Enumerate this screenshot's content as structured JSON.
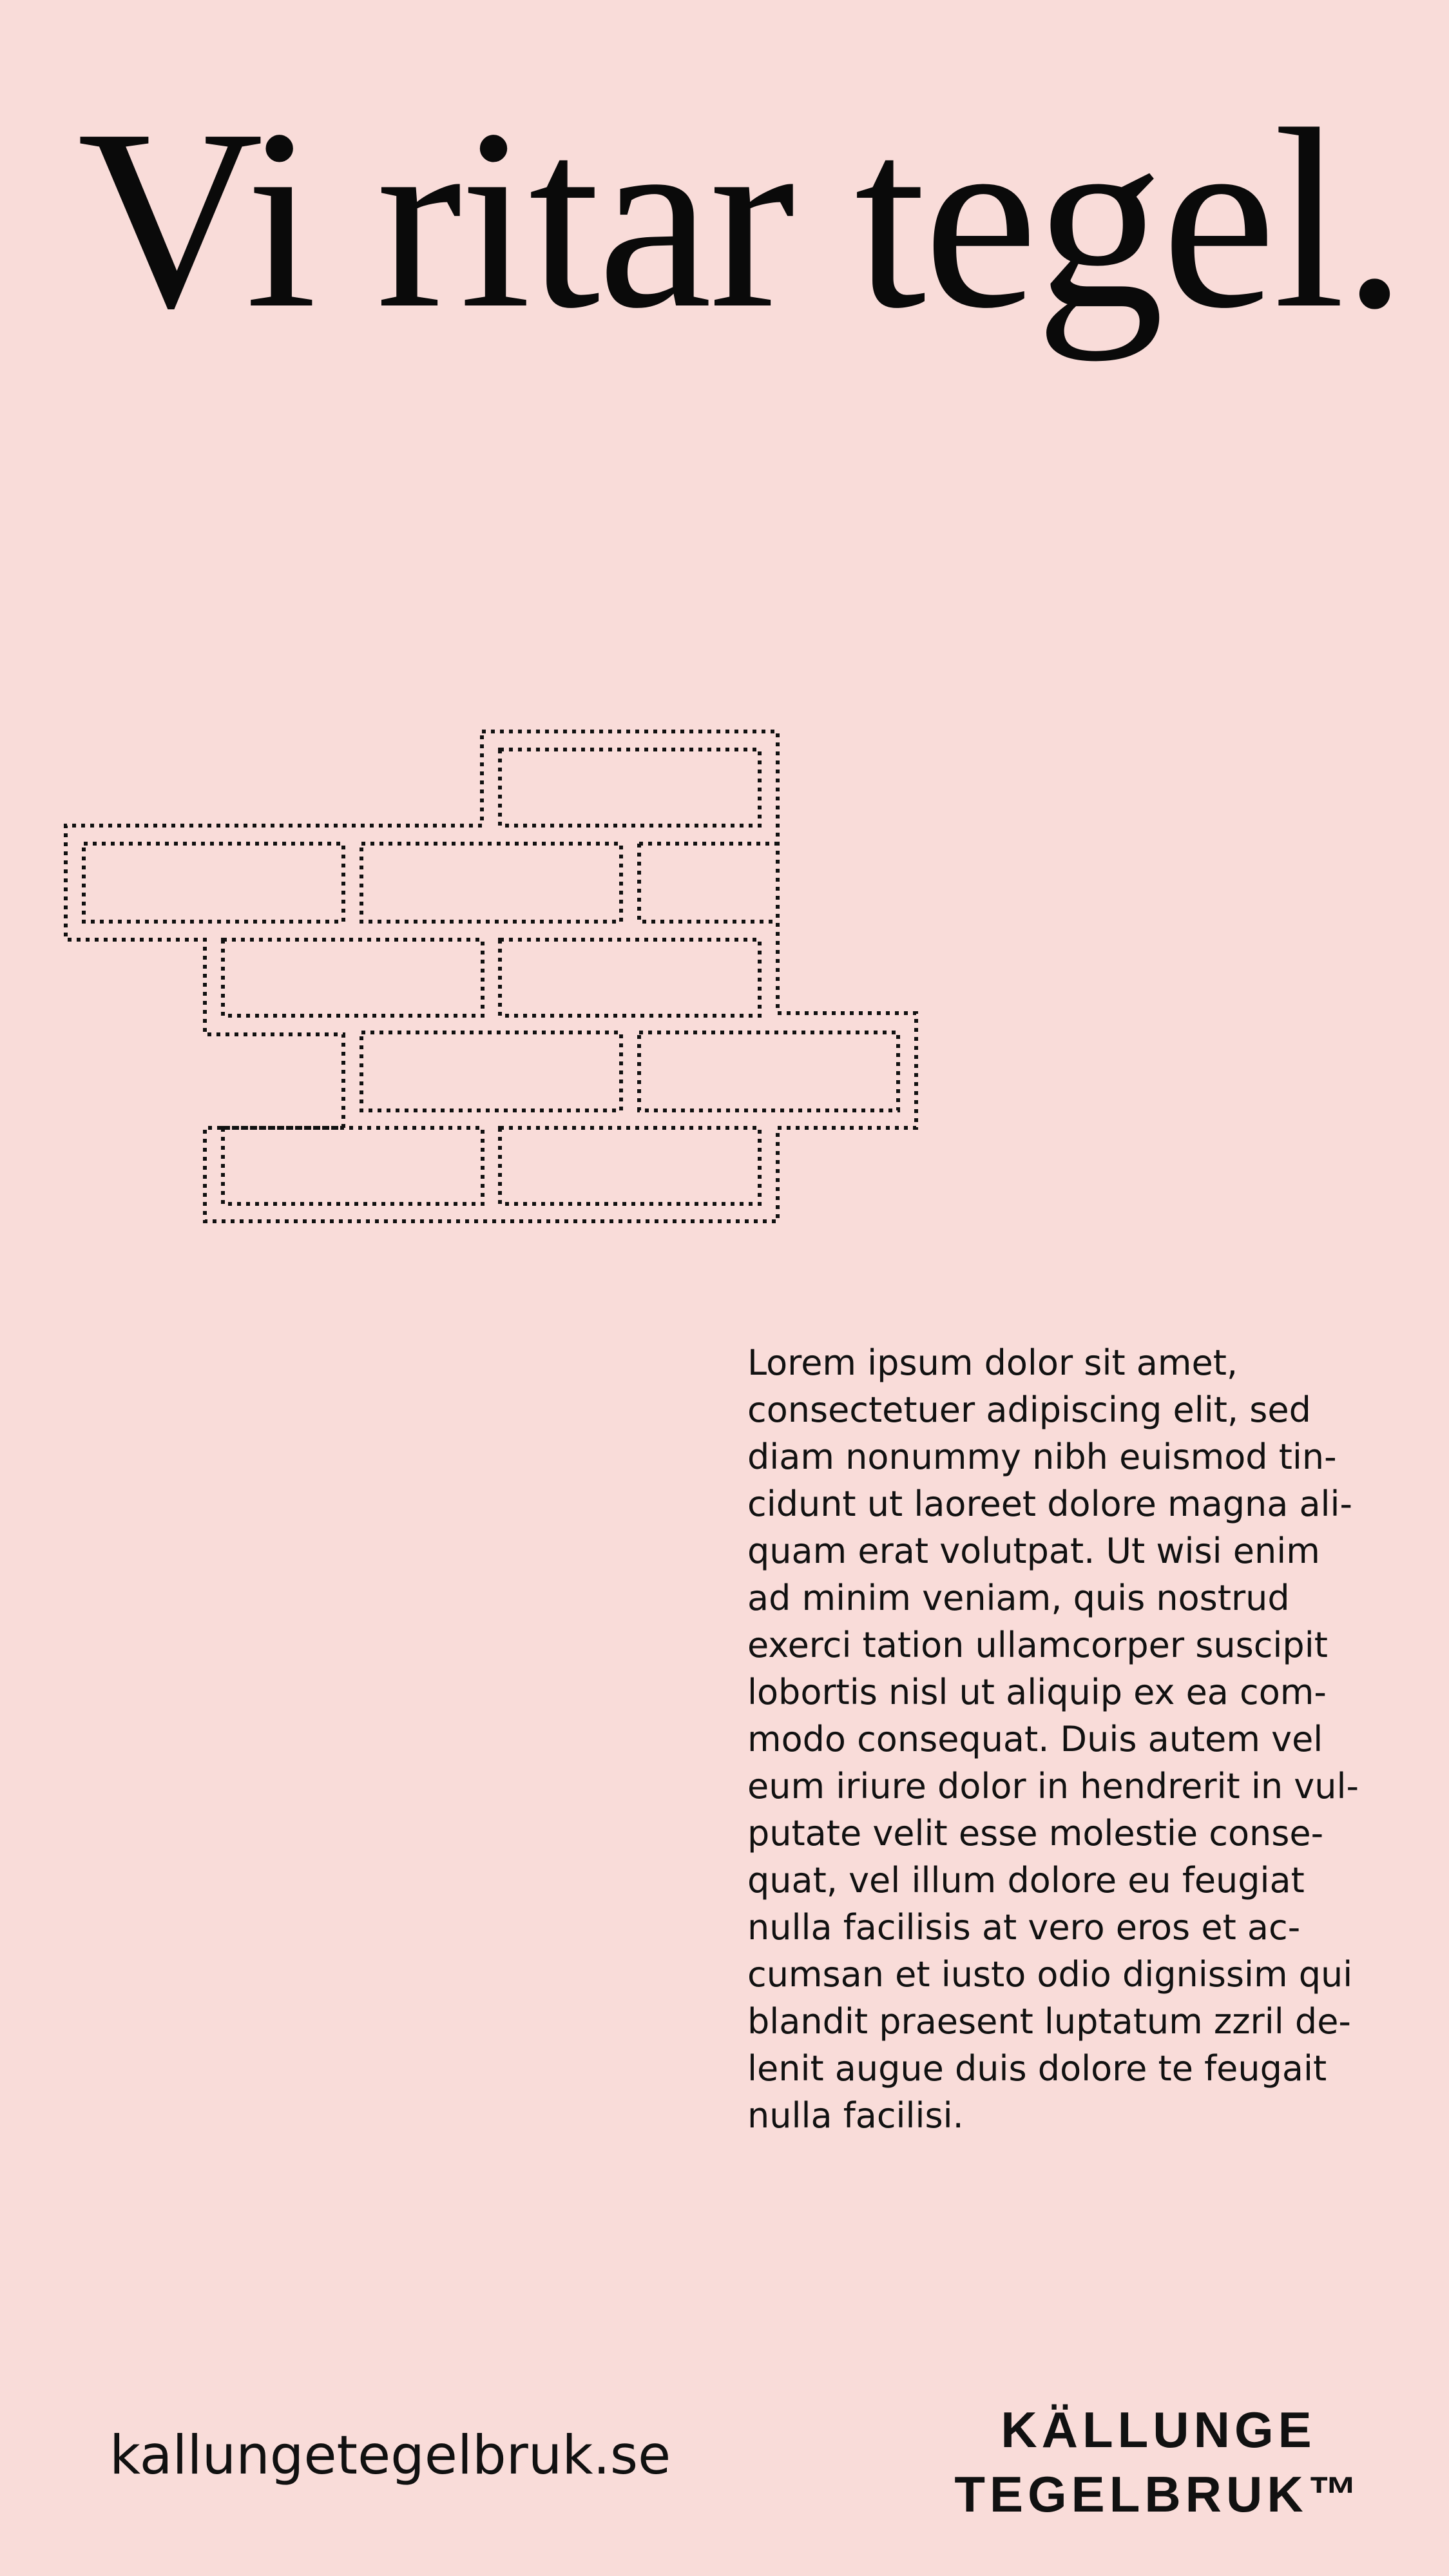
{
  "page": {
    "background_color": "#f9dcd9",
    "text_color": "#111111"
  },
  "headline": "Vi ritar tegel.",
  "illustration": {
    "icon": "dotted-brick-wall-icon"
  },
  "body_text": "Lorem ipsum dolor sit amet,\nconsectetuer adipiscing elit, sed\ndiam nonummy nibh euismod tin-\ncidunt ut laoreet dolore magna ali-\nquam erat volutpat. Ut wisi enim\nad minim veniam, quis nostrud\nexerci tation ullamcorper suscipit\nlobortis nisl ut aliquip ex ea com-\nmodo consequat. Duis autem vel\neum iriure dolor in hendrerit in vul-\nputate velit esse molestie conse-\nquat, vel illum dolore eu feugiat\nnulla facilisis at vero eros et ac-\ncumsan et iusto odio dignissim qui\nblandit praesent luptatum zzril de-\nlenit augue duis dolore te feugait\nnulla facilisi.",
  "footer": {
    "website": "kallungetegelbruk.se",
    "brand_line_1": "KÄLLUNGE",
    "brand_line_2": "TEGELBRUK™"
  }
}
